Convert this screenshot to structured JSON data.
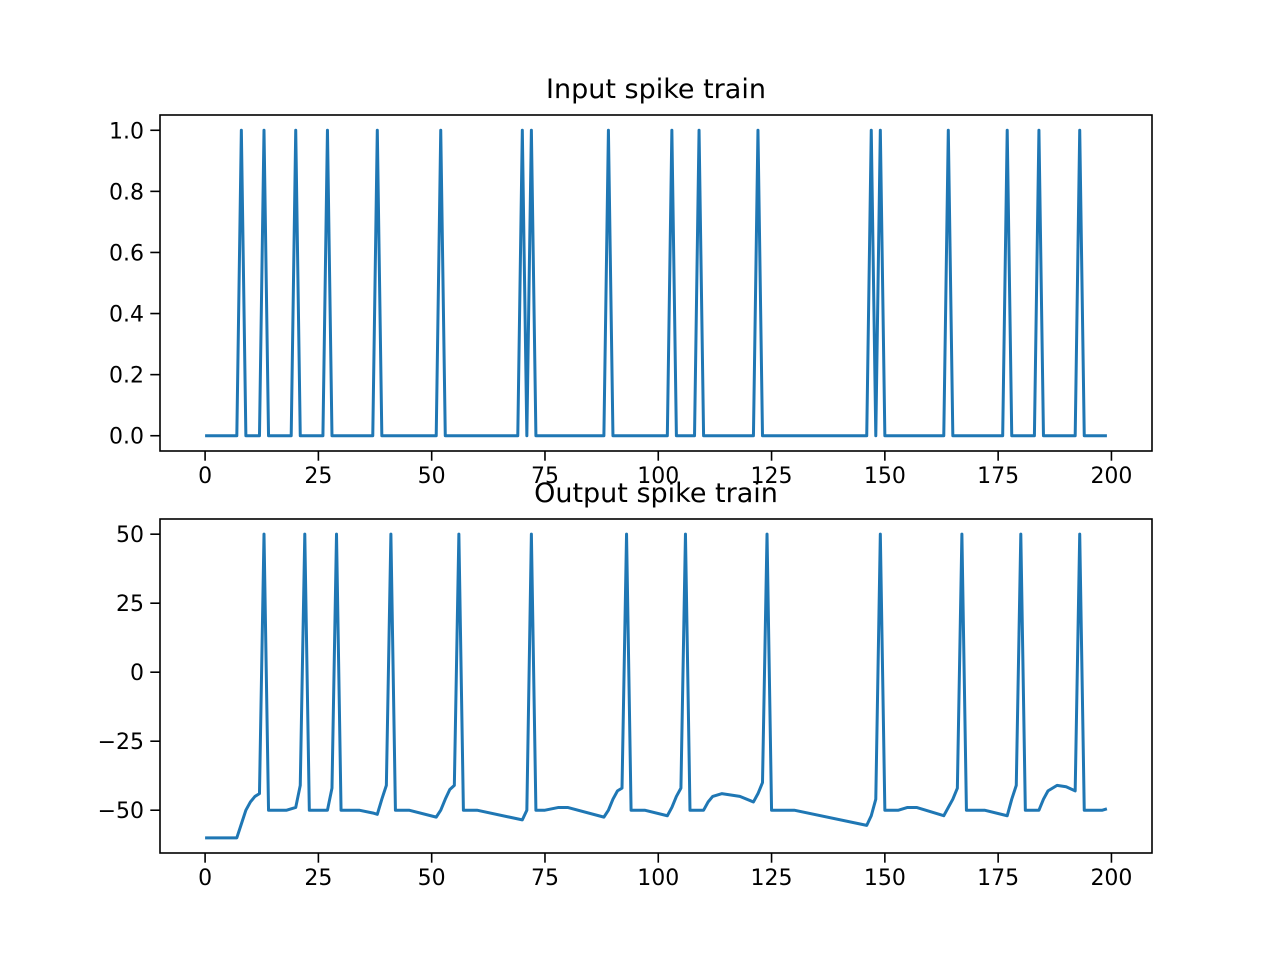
{
  "chart_data": [
    {
      "type": "line",
      "title": "Input spike train",
      "x": [
        0,
        7,
        8,
        9,
        12,
        13,
        14,
        19,
        20,
        21,
        26,
        27,
        28,
        37,
        38,
        39,
        51,
        52,
        53,
        69,
        70,
        71,
        72,
        73,
        88,
        89,
        90,
        102,
        103,
        104,
        108,
        109,
        110,
        121,
        122,
        123,
        146,
        147,
        148,
        149,
        150,
        163,
        164,
        165,
        176,
        177,
        178,
        183,
        184,
        185,
        192,
        193,
        194,
        199
      ],
      "series": [
        {
          "color": "#1f77b4",
          "values": [
            0,
            0,
            1,
            0,
            0,
            1,
            0,
            0,
            1,
            0,
            0,
            1,
            0,
            0,
            1,
            0,
            0,
            1,
            0,
            0,
            1,
            0,
            1,
            0,
            0,
            1,
            0,
            0,
            1,
            0,
            0,
            1,
            0,
            0,
            1,
            0,
            0,
            1,
            0,
            1,
            0,
            0,
            1,
            0,
            0,
            1,
            0,
            0,
            1,
            0,
            0,
            1,
            0,
            0
          ]
        }
      ],
      "xlim": [
        -9.95,
        208.95
      ],
      "xticks": [
        0,
        25,
        50,
        75,
        100,
        125,
        150,
        175,
        200
      ],
      "ylim": [
        -0.05,
        1.05
      ],
      "yticks": [
        {
          "value": 0,
          "label": "0.0"
        },
        {
          "value": 0.2,
          "label": "0.2"
        },
        {
          "value": 0.4,
          "label": "0.4"
        },
        {
          "value": 0.6,
          "label": "0.6"
        },
        {
          "value": 0.8,
          "label": "0.8"
        },
        {
          "value": 1,
          "label": "1.0"
        }
      ]
    },
    {
      "type": "line",
      "title": "Output spike train",
      "x": [
        0,
        7,
        8,
        9,
        10,
        11,
        12,
        13,
        14,
        18,
        19,
        20,
        21,
        22,
        23,
        27,
        28,
        29,
        30,
        34,
        37,
        38,
        39,
        40,
        41,
        42,
        45,
        51,
        52,
        53,
        54,
        55,
        56,
        57,
        60,
        70,
        71,
        72,
        73,
        75,
        78,
        80,
        88,
        89,
        90,
        91,
        92,
        93,
        94,
        97,
        102,
        103,
        104,
        105,
        106,
        107,
        110,
        111,
        112,
        114,
        118,
        121,
        122,
        123,
        124,
        125,
        130,
        146,
        147,
        148,
        149,
        150,
        153,
        155,
        157,
        163,
        164,
        165,
        166,
        167,
        168,
        172,
        177,
        178,
        179,
        180,
        181,
        184,
        185,
        186,
        188,
        190,
        192,
        193,
        194,
        198,
        199
      ],
      "series": [
        {
          "color": "#1f77b4",
          "values": [
            -60,
            -60,
            -55,
            -50,
            -47,
            -45,
            -44,
            50,
            -50,
            -50,
            -49.5,
            -49,
            -41,
            50,
            -50,
            -50,
            -42,
            50,
            -50,
            -50,
            -51,
            -51.5,
            -46,
            -41,
            50,
            -50,
            -50,
            -52.5,
            -50,
            -46,
            -42.5,
            -41,
            50,
            -50,
            -50,
            -53.5,
            -50,
            50,
            -50,
            -50,
            -49,
            -49,
            -52.5,
            -50,
            -46,
            -43,
            -42,
            50,
            -50,
            -50,
            -52,
            -49,
            -45,
            -42,
            50,
            -50,
            -50,
            -47,
            -45,
            -44,
            -45,
            -47,
            -44,
            -40,
            50,
            -50,
            -50,
            -55.5,
            -52,
            -46,
            50,
            -50,
            -50,
            -49,
            -49,
            -52,
            -49,
            -46,
            -42,
            50,
            -50,
            -50,
            -52,
            -46,
            -41,
            50,
            -50,
            -50,
            -46,
            -43,
            -41,
            -41.5,
            -43,
            50,
            -50,
            -50,
            -49.5
          ]
        }
      ],
      "xlim": [
        -9.95,
        208.95
      ],
      "xticks": [
        0,
        25,
        50,
        75,
        100,
        125,
        150,
        175,
        200
      ],
      "ylim": [
        -65.5,
        55.5
      ],
      "yticks": [
        {
          "value": -50,
          "label": "−50"
        },
        {
          "value": -25,
          "label": "−25"
        },
        0,
        25,
        50
      ]
    }
  ]
}
